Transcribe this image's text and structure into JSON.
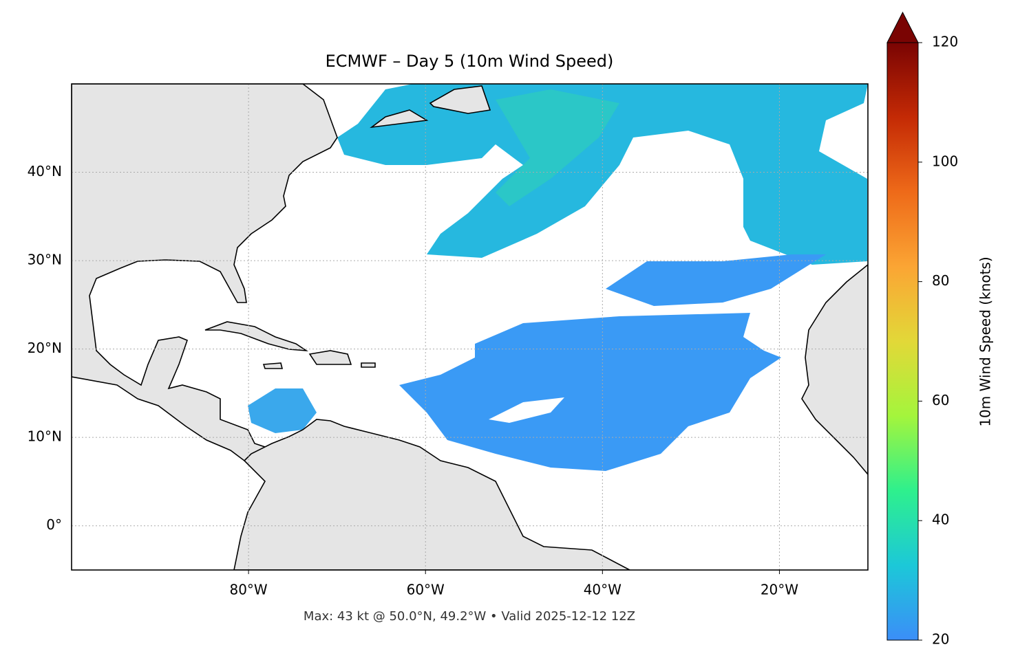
{
  "chart_data": {
    "type": "map",
    "title": "ECMWF – Day 5 (10m Wind Speed)",
    "caption": "Max: 43 kt @ 50.0°N, 49.2°W • Valid 2025-12-12 12Z",
    "xlim": [
      -100,
      -10
    ],
    "ylim": [
      -5,
      50
    ],
    "xticks": [
      {
        "value": -80,
        "label": "80°W"
      },
      {
        "value": -60,
        "label": "60°W"
      },
      {
        "value": -40,
        "label": "40°W"
      },
      {
        "value": -20,
        "label": "20°W"
      }
    ],
    "yticks": [
      {
        "value": 0,
        "label": "0°"
      },
      {
        "value": 10,
        "label": "10°N"
      },
      {
        "value": 20,
        "label": "20°N"
      },
      {
        "value": 30,
        "label": "30°N"
      },
      {
        "value": 40,
        "label": "40°N"
      }
    ],
    "grid": true,
    "colorbar": {
      "label": "10m Wind Speed (knots)",
      "lim": [
        20,
        120
      ],
      "ticks": [
        20,
        40,
        60,
        80,
        100,
        120
      ],
      "colormap": [
        "#3b8ef8",
        "#1cc8d8",
        "#2ef08d",
        "#a4f53c",
        "#e2d838",
        "#fba534",
        "#ee6a19",
        "#c42a05",
        "#7a0403"
      ]
    }
  }
}
